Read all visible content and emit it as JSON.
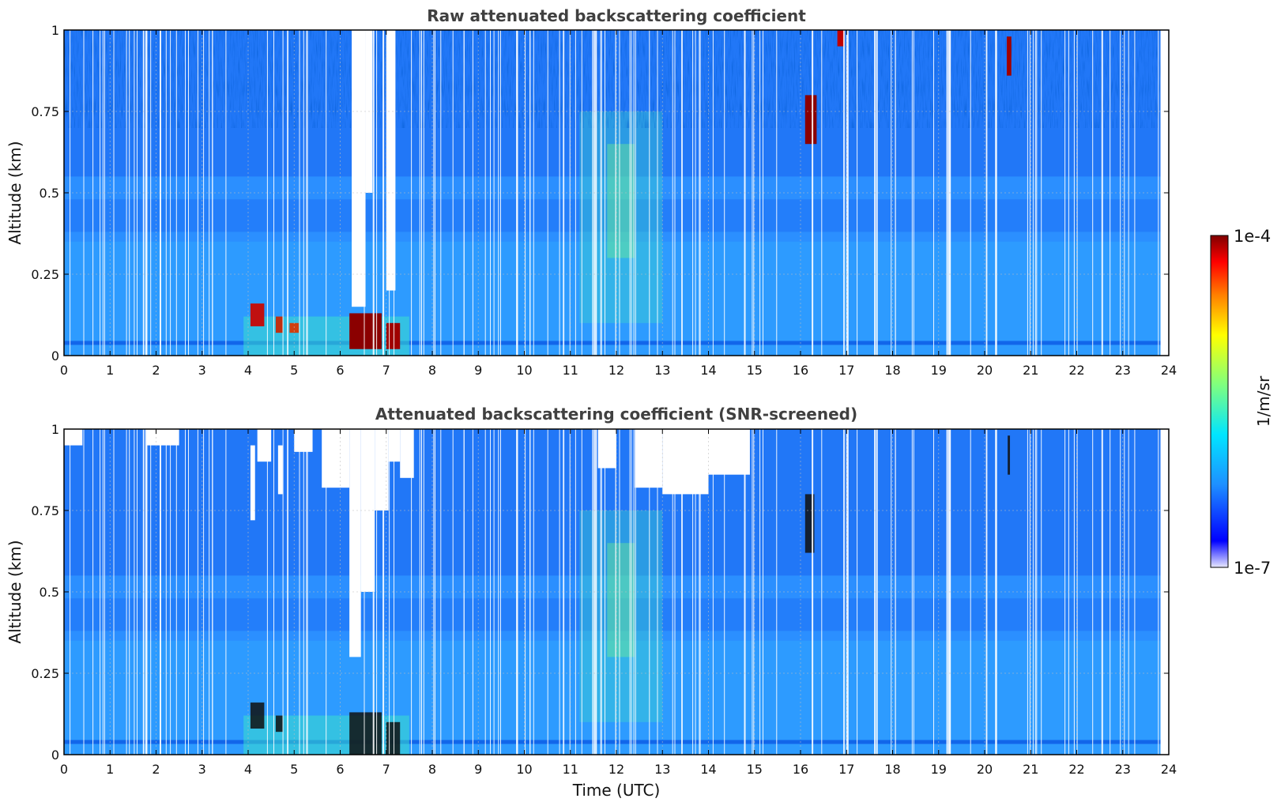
{
  "chart_data": [
    {
      "type": "heatmap",
      "title": "Raw attenuated backscattering coefficient",
      "xlabel": "",
      "ylabel": "Altitude (km)",
      "xlim": [
        0,
        24
      ],
      "ylim": [
        0,
        1
      ],
      "x_ticks": [
        "0",
        "1",
        "2",
        "3",
        "4",
        "5",
        "6",
        "7",
        "8",
        "9",
        "10",
        "11",
        "12",
        "13",
        "14",
        "15",
        "16",
        "17",
        "18",
        "19",
        "20",
        "21",
        "22",
        "23",
        "24"
      ],
      "y_ticks": [
        "0",
        "0.25",
        "0.5",
        "0.75",
        "1"
      ],
      "grid": true,
      "colormap": "jet",
      "features": [
        {
          "x": [
            0.0,
            24.0
          ],
          "y": [
            0.0,
            1.0
          ],
          "level": "low",
          "note_color": "#1e90ff"
        },
        {
          "x": [
            6.1,
            7.4
          ],
          "y": [
            0.0,
            0.15
          ],
          "level": "high"
        },
        {
          "x": [
            4.0,
            5.2
          ],
          "y": [
            0.05,
            0.16
          ],
          "level": "high"
        },
        {
          "x": [
            16.1,
            16.4
          ],
          "y": [
            0.65,
            0.8
          ],
          "level": "high"
        },
        {
          "x": [
            20.5,
            20.6
          ],
          "y": [
            0.85,
            1.0
          ],
          "level": "high"
        }
      ]
    },
    {
      "type": "heatmap",
      "title": "Attenuated backscattering coefficient (SNR-screened)",
      "xlabel": "Time (UTC)",
      "ylabel": "Altitude (km)",
      "xlim": [
        0,
        24
      ],
      "ylim": [
        0,
        1
      ],
      "x_ticks": [
        "0",
        "1",
        "2",
        "3",
        "4",
        "5",
        "6",
        "7",
        "8",
        "9",
        "10",
        "11",
        "12",
        "13",
        "14",
        "15",
        "16",
        "17",
        "18",
        "19",
        "20",
        "21",
        "22",
        "23",
        "24"
      ],
      "y_ticks": [
        "0",
        "0.25",
        "0.5",
        "0.75",
        "1"
      ],
      "grid": true,
      "colormap": "jet",
      "masked_regions": [
        {
          "x": [
            6.2,
            7.6
          ],
          "y": [
            0.3,
            1.0
          ]
        },
        {
          "x": [
            12.4,
            15.0
          ],
          "y": [
            0.8,
            1.0
          ]
        },
        {
          "x": [
            4.1,
            6.2
          ],
          "y": [
            0.85,
            1.0
          ]
        }
      ]
    }
  ],
  "colorbar": {
    "label": "1/m/sr",
    "max_label": "1e-4",
    "min_label": "1e-7",
    "colors": [
      "#e8e8ff",
      "#0000ff",
      "#1e90ff",
      "#00e5ff",
      "#7fff7f",
      "#ffff00",
      "#ff8000",
      "#ff0000",
      "#800000"
    ]
  }
}
